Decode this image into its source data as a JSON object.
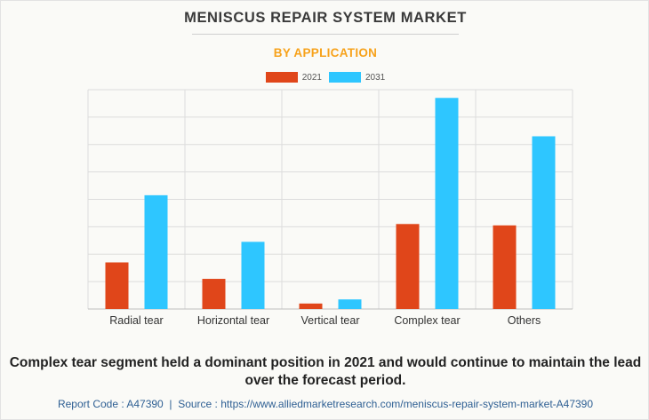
{
  "title": "MENISCUS REPAIR SYSTEM MARKET",
  "subtitle": "BY APPLICATION",
  "colors": {
    "series_2021": "#e0461a",
    "series_2031": "#2ec6ff",
    "subtitle": "#f7a21b",
    "grid": "#dcdcdc",
    "footer": "#2e5f93"
  },
  "chart_data": {
    "type": "bar",
    "categories": [
      "Radial tear",
      "Horizontal tear",
      "Vertical tear",
      "Complex tear",
      "Others"
    ],
    "series": [
      {
        "name": "2021",
        "values": [
          17,
          11,
          2,
          31,
          30.5
        ]
      },
      {
        "name": "2031",
        "values": [
          41.5,
          24.5,
          3.5,
          77,
          63
        ]
      }
    ],
    "ylim": [
      0,
      80
    ],
    "grid": true,
    "legend": "top-center"
  },
  "caption": "Complex tear segment held a dominant position in 2021 and would continue to maintain the lead over the forecast period.",
  "footer": {
    "report_code": "Report Code : A47390",
    "separator": "|",
    "source": "Source : https://www.alliedmarketresearch.com/meniscus-repair-system-market-A47390"
  }
}
